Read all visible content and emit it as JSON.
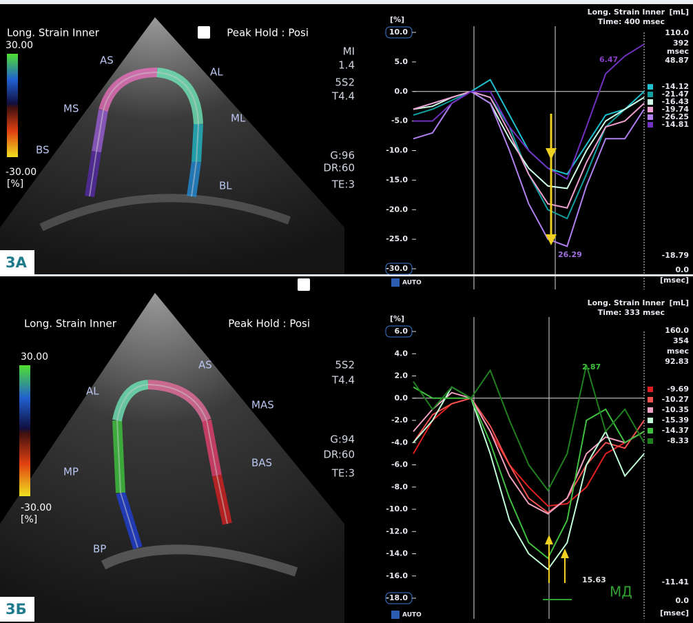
{
  "panel_labels": [
    "3А",
    "3Б"
  ],
  "echo": [
    {
      "title": "Long. Strain Inner",
      "mode": "Peak Hold : Posi",
      "scale_max": "30.00",
      "scale_min": "-30.00",
      "unit": "[%]",
      "segments": [
        {
          "label": "BS",
          "color": "#5a2bb0"
        },
        {
          "label": "MS",
          "color": "#a060e0"
        },
        {
          "label": "AS",
          "color": "#f070c0"
        },
        {
          "label": "AL",
          "color": "#70f0c0"
        },
        {
          "label": "ML",
          "color": "#20c0d0"
        },
        {
          "label": "BL",
          "color": "#2090e0"
        }
      ],
      "params": [
        "MI",
        "1.4",
        "5S2",
        "T4.4",
        "G:96",
        "DR:60",
        "TE:3"
      ]
    },
    {
      "title": "Long. Strain Inner",
      "mode": "Peak Hold : Posi",
      "scale_max": "30.00",
      "scale_min": "-30.00",
      "unit": "[%]",
      "segments": [
        {
          "label": "BP",
          "color": "#2040e0"
        },
        {
          "label": "MP",
          "color": "#40d040"
        },
        {
          "label": "AL",
          "color": "#70f0c0"
        },
        {
          "label": "AS",
          "color": "#f070a0"
        },
        {
          "label": "MAS",
          "color": "#f04070"
        },
        {
          "label": "BAS",
          "color": "#e02020"
        }
      ],
      "params": [
        "5S2",
        "T4.4",
        "G:94",
        "DR:60",
        "TE:3"
      ]
    }
  ],
  "chart_data": [
    {
      "type": "line",
      "title": "Long. Strain Inner",
      "subtitle": "Time: 400 msec",
      "y_label": "[%]",
      "categories": [
        null,
        null,
        null,
        null,
        null,
        null,
        null,
        null,
        null,
        null,
        null,
        null,
        null
      ],
      "ylim": [
        -30,
        10
      ],
      "yticks": [
        {
          "value": 10,
          "label": "10.0"
        },
        {
          "value": 5,
          "label": "5.0"
        },
        {
          "value": 0,
          "label": "0.0"
        },
        {
          "value": -5,
          "label": "-5.0"
        },
        {
          "value": -10,
          "label": "-10.0"
        },
        {
          "value": -15,
          "label": "-15.0"
        },
        {
          "value": -20,
          "label": "-20.0"
        },
        {
          "value": -25,
          "label": "-25.0"
        },
        {
          "value": -30,
          "label": "-30.0"
        }
      ],
      "series": [
        {
          "name": "-14.12",
          "color": "#20c0d0",
          "values": [
            -3,
            -2,
            -1,
            0,
            2,
            -4,
            -10,
            -13,
            -14,
            -9,
            -4,
            -3,
            0
          ]
        },
        {
          "name": "-21.47",
          "color": "#10a0a0",
          "values": [
            -4,
            -3,
            -1.5,
            0,
            -1,
            -6,
            -14,
            -20,
            -21.5,
            -14,
            -6,
            -3,
            -1
          ]
        },
        {
          "name": "-16.43",
          "color": "#d0ffe8",
          "values": [
            -3,
            -2.5,
            -1,
            0,
            -2,
            -8,
            -13,
            -16,
            -16.4,
            -10,
            -5,
            -3,
            -1
          ]
        },
        {
          "name": "-19.74",
          "color": "#f0a0d0",
          "values": [
            -3,
            -2,
            -1,
            0,
            -1,
            -7,
            -14,
            -19,
            -19.7,
            -12,
            -6,
            -5,
            -2
          ]
        },
        {
          "name": "-26.25",
          "color": "#b080f0",
          "values": [
            -8,
            -7,
            -2,
            0,
            -2,
            -10,
            -19,
            -25,
            -26.2,
            -16,
            -8,
            -8,
            -3
          ]
        },
        {
          "name": "-14.81",
          "color": "#7030c0",
          "values": [
            -5,
            -5,
            -2,
            0,
            0,
            -6,
            -10,
            -13,
            -14.8,
            -6,
            3,
            6,
            8
          ]
        }
      ],
      "volume": {
        "unit": "[mL]",
        "max": "110.0",
        "time": "392",
        "time_unit": "msec",
        "value": "48.87",
        "min": "-18.79",
        "zero": "0.0",
        "x_unit": "[msec]"
      },
      "annotations": [
        {
          "text": "6.47",
          "color": "#8b3fc6"
        },
        {
          "text": "26.29",
          "color": "#a070e0"
        }
      ],
      "auto": "AUTO"
    },
    {
      "type": "line",
      "title": "Long. Strain Inner",
      "subtitle": "Time: 333 msec",
      "y_label": "[%]",
      "categories": [
        null,
        null,
        null,
        null,
        null,
        null,
        null,
        null,
        null,
        null,
        null,
        null,
        null
      ],
      "ylim": [
        -18,
        6
      ],
      "yticks": [
        {
          "value": 6,
          "label": "6.0"
        },
        {
          "value": 4,
          "label": "4.0"
        },
        {
          "value": 2,
          "label": "2.0"
        },
        {
          "value": 0,
          "label": "0.0"
        },
        {
          "value": -2,
          "label": "-2.0"
        },
        {
          "value": -4,
          "label": "-4.0"
        },
        {
          "value": -6,
          "label": "-6.0"
        },
        {
          "value": -8,
          "label": "-8.0"
        },
        {
          "value": -10,
          "label": "-10.0"
        },
        {
          "value": -12,
          "label": "-12.0"
        },
        {
          "value": -14,
          "label": "-14.0"
        },
        {
          "value": -16,
          "label": "-16.0"
        },
        {
          "value": -18,
          "label": "-18.0"
        }
      ],
      "series": [
        {
          "name": "-9.69",
          "color": "#e02020",
          "values": [
            -5,
            -2,
            -0.5,
            0,
            -3,
            -6,
            -8,
            -9.7,
            -9.5,
            -8,
            -5,
            -4,
            -3
          ]
        },
        {
          "name": "-10.27",
          "color": "#f05050",
          "values": [
            -4,
            -1.5,
            -0.5,
            0,
            -2.5,
            -6,
            -9,
            -10.3,
            -9,
            -6,
            -4,
            -4.5,
            -2
          ]
        },
        {
          "name": "-10.35",
          "color": "#f0a0c0",
          "values": [
            -3,
            -1,
            0.5,
            0,
            -3,
            -7,
            -9.5,
            -10.4,
            -9,
            -5,
            -3.5,
            -4,
            -3
          ]
        },
        {
          "name": "-15.39",
          "color": "#c0ffd8",
          "values": [
            -4,
            -2,
            1,
            0,
            -5,
            -11,
            -14,
            -15.4,
            -13,
            -6,
            -3,
            -7,
            -5
          ]
        },
        {
          "name": "-14.37",
          "color": "#40c040",
          "values": [
            1,
            0,
            0,
            0,
            -4,
            -9,
            -13,
            -14.4,
            -11,
            -2,
            -1,
            -4,
            -3
          ]
        },
        {
          "name": "-8.33",
          "color": "#208020",
          "values": [
            1.5,
            -1,
            1,
            0,
            2.5,
            -2,
            -6,
            -8.3,
            -5,
            3,
            -3,
            -1,
            -4
          ]
        }
      ],
      "volume": {
        "unit": "[mL]",
        "max": "160.0",
        "time": "354",
        "time_unit": "msec",
        "value": "92.83",
        "min": "-11.41",
        "zero": "0.0",
        "x_unit": "[msec]"
      },
      "annotations": [
        {
          "text": "2.87",
          "color": "#40c040"
        },
        {
          "text": "15.63",
          "color": "#e0e0e0"
        },
        {
          "text": "МД",
          "color": "#30a030"
        }
      ],
      "auto": "AUTO"
    }
  ]
}
